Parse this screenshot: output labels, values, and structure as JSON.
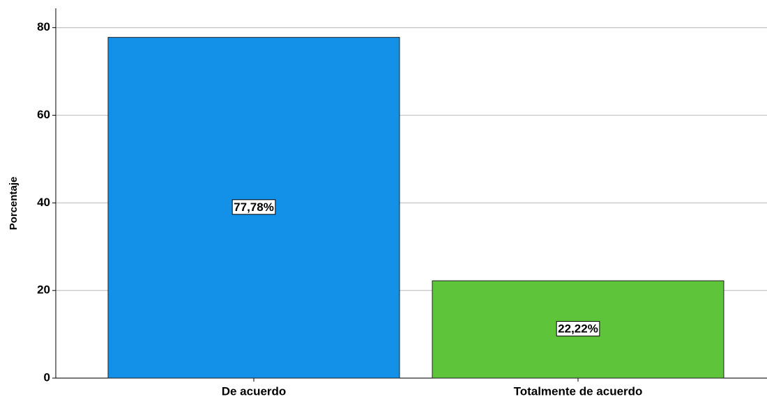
{
  "chart_data": {
    "type": "bar",
    "y_label": "Porcentaje",
    "categories": [
      "De acuerdo",
      "Totalmente de acuerdo"
    ],
    "values": [
      77.78,
      22.22
    ],
    "value_labels": [
      "77,78%",
      "22,22%"
    ],
    "colors": [
      "#1390e8",
      "#5ec43a"
    ],
    "ylim": [
      0,
      84.4
    ],
    "yticks": [
      0,
      20,
      40,
      60,
      80
    ],
    "grid": true
  }
}
